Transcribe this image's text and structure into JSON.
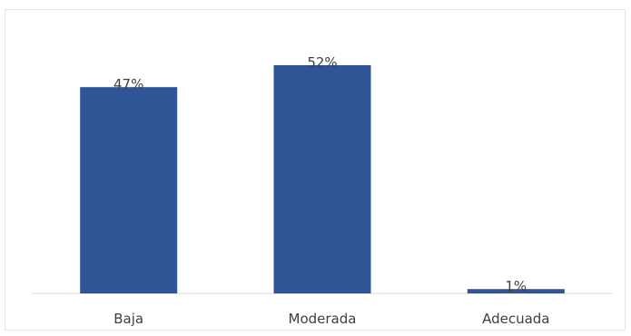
{
  "chart_data": {
    "type": "bar",
    "title": "",
    "xlabel": "",
    "ylabel": "",
    "categories": [
      "Baja",
      "Moderada",
      "Adecuada"
    ],
    "values": [
      47,
      52,
      1
    ],
    "data_labels": [
      "47%",
      "52%",
      "1%"
    ],
    "unit": "%",
    "ylim": [
      0,
      52
    ],
    "grid": false,
    "legend": "none",
    "bar_color": "#2F5597",
    "axis_color": "#D9D9D9",
    "label_color": "#404040"
  }
}
